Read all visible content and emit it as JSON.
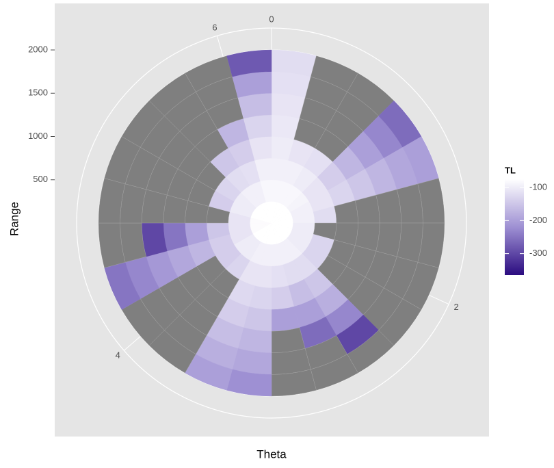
{
  "chart_data": {
    "type": "polar-heatmap",
    "x_label": "Theta",
    "y_label": "Range",
    "legend_title": "TL",
    "xlim": [
      0,
      6.2832
    ],
    "xticks": [
      0,
      2,
      4,
      6
    ],
    "ylim": [
      0,
      2000
    ],
    "yticks": [
      500,
      1000,
      1500,
      2000
    ],
    "x": [
      0.1309,
      0.3927,
      0.6545,
      0.9163,
      1.1781,
      1.4399,
      1.7017,
      1.9635,
      2.2253,
      2.4871,
      2.7489,
      3.0107,
      3.2725,
      3.5343,
      3.7961,
      4.0579,
      4.3197,
      4.5815,
      4.8433,
      5.1051,
      5.3669,
      5.6287,
      5.8905,
      6.1523
    ],
    "y": [
      125,
      375,
      625,
      875,
      1125,
      1375,
      1625,
      1875
    ],
    "values": [
      [
        -70,
        -85,
        -95,
        -100,
        -105,
        -110,
        -115,
        -120
      ],
      [
        -70,
        -85,
        -95,
        -110,
        null,
        null,
        null,
        null
      ],
      [
        -70,
        -85,
        -100,
        -115,
        null,
        null,
        null,
        null
      ],
      [
        -75,
        -90,
        -110,
        -140,
        -170,
        -200,
        -230,
        -260
      ],
      [
        -75,
        -95,
        -110,
        -130,
        -150,
        -170,
        -190,
        -200
      ],
      [
        -75,
        -95,
        -120,
        null,
        null,
        null,
        null,
        null
      ],
      [
        -75,
        -100,
        null,
        null,
        null,
        null,
        null,
        null
      ],
      [
        -75,
        -100,
        -130,
        null,
        null,
        null,
        null,
        null
      ],
      [
        -75,
        -100,
        -130,
        null,
        null,
        null,
        null,
        null
      ],
      [
        -75,
        -95,
        -120,
        -150,
        -180,
        -230,
        -300,
        null
      ],
      [
        -75,
        -95,
        -120,
        -160,
        -200,
        -260,
        null,
        null
      ],
      [
        -75,
        -95,
        -115,
        -140,
        -200,
        null,
        null,
        null
      ],
      [
        -75,
        -95,
        -110,
        -130,
        -150,
        -170,
        -190,
        -220
      ],
      [
        -75,
        -95,
        -110,
        -125,
        -140,
        -160,
        -180,
        -200
      ],
      [
        -75,
        -100,
        -130,
        null,
        null,
        null,
        null,
        null
      ],
      [
        -75,
        -100,
        -140,
        null,
        null,
        null,
        null,
        null
      ],
      [
        -80,
        -110,
        -140,
        -170,
        -190,
        -210,
        -230,
        -250
      ],
      [
        -80,
        -110,
        -150,
        -200,
        -250,
        -300,
        null,
        null
      ],
      [
        -80,
        -110,
        null,
        null,
        null,
        null,
        null,
        null
      ],
      [
        -75,
        -100,
        -140,
        null,
        null,
        null,
        null,
        null
      ],
      [
        -75,
        -100,
        -130,
        null,
        null,
        null,
        null,
        null
      ],
      [
        -75,
        -95,
        -120,
        -150,
        null,
        null,
        null,
        null
      ],
      [
        -75,
        -95,
        -115,
        -140,
        -170,
        null,
        null,
        null
      ],
      [
        -70,
        -85,
        -95,
        -110,
        -130,
        -160,
        -200,
        -280
      ]
    ],
    "clim": [
      -365,
      -75
    ],
    "cticks": [
      -100,
      -200,
      -300
    ],
    "colors": {
      "low": "#2b0c80",
      "mid": "#9e90d3",
      "high": "#ffffff",
      "na": "#7f7f7f"
    },
    "grid": true
  }
}
